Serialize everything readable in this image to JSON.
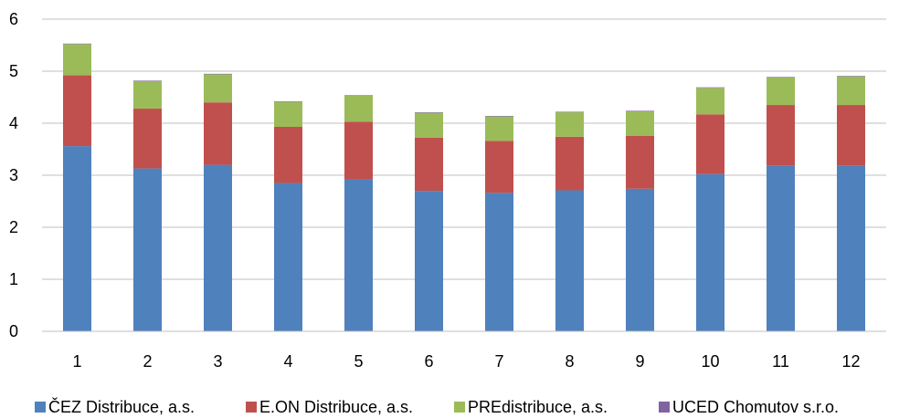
{
  "chart_data": {
    "type": "bar",
    "stacked": true,
    "categories": [
      "1",
      "2",
      "3",
      "4",
      "5",
      "6",
      "7",
      "8",
      "9",
      "10",
      "11",
      "12"
    ],
    "series": [
      {
        "name": "ČEZ Distribuce, a.s.",
        "color": "#4F81BD",
        "values": [
          3.56,
          3.13,
          3.2,
          2.85,
          2.92,
          2.7,
          2.66,
          2.71,
          2.74,
          3.02,
          3.18,
          3.18
        ]
      },
      {
        "name": "E.ON Distribuce, a.s.",
        "color": "#C0504D",
        "values": [
          1.36,
          1.15,
          1.2,
          1.08,
          1.11,
          1.02,
          1.0,
          1.03,
          1.02,
          1.15,
          1.17,
          1.17
        ]
      },
      {
        "name": "PREdistribuce, a.s.",
        "color": "#9BBB59",
        "values": [
          0.6,
          0.53,
          0.54,
          0.48,
          0.5,
          0.48,
          0.47,
          0.47,
          0.47,
          0.51,
          0.53,
          0.55
        ]
      },
      {
        "name": "UCED Chomutov s.r.o.",
        "color": "#8064A2",
        "values": [
          0.01,
          0.01,
          0.01,
          0.01,
          0.01,
          0.01,
          0.01,
          0.01,
          0.01,
          0.01,
          0.01,
          0.01
        ]
      }
    ],
    "yticks": [
      "0",
      "1",
      "2",
      "3",
      "4",
      "5",
      "6"
    ],
    "ylim": [
      0,
      6
    ],
    "grid": true,
    "legend": "bottom"
  }
}
